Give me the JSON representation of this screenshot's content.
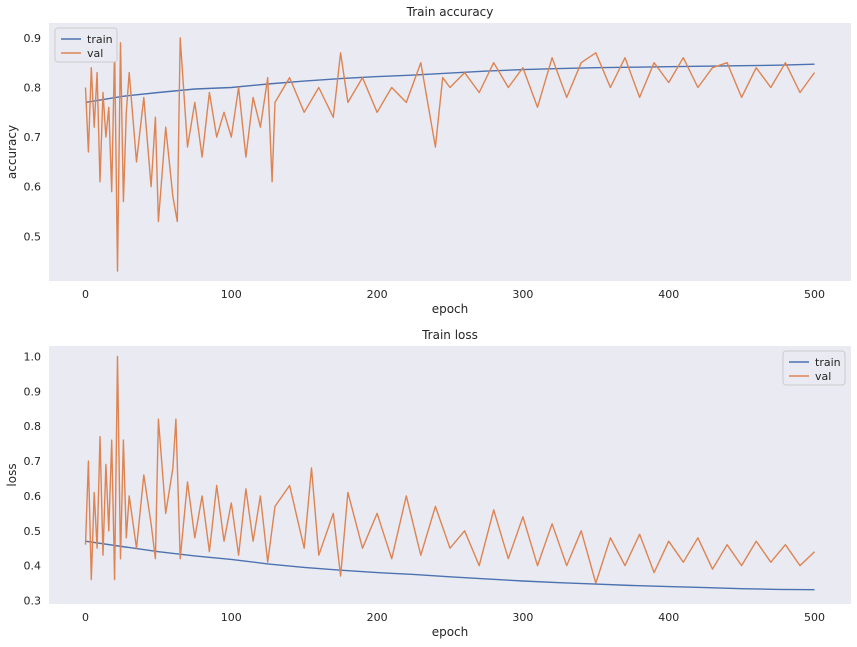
{
  "chart_data": [
    {
      "type": "line",
      "title": "Train accuracy",
      "xlabel": "epoch",
      "ylabel": "accuracy",
      "xlim": [
        -25,
        525
      ],
      "ylim": [
        0.41,
        0.93
      ],
      "xticks": [
        0,
        100,
        200,
        300,
        400,
        500
      ],
      "yticks": [
        0.5,
        0.6,
        0.7,
        0.8,
        0.9
      ],
      "tick_labels_x": [
        "0",
        "100",
        "200",
        "300",
        "400",
        "500"
      ],
      "tick_labels_y": [
        "0.5",
        "0.6",
        "0.7",
        "0.8",
        "0.9"
      ],
      "grid": false,
      "background": "#eaeaf2",
      "legend_position": "upper-left",
      "series": [
        {
          "name": "train",
          "color": "#4c72b0",
          "x": [
            0,
            25,
            50,
            75,
            100,
            125,
            150,
            175,
            200,
            225,
            250,
            275,
            300,
            325,
            350,
            375,
            400,
            425,
            450,
            475,
            500
          ],
          "y": [
            0.77,
            0.782,
            0.79,
            0.797,
            0.8,
            0.807,
            0.813,
            0.818,
            0.822,
            0.825,
            0.829,
            0.833,
            0.836,
            0.838,
            0.84,
            0.841,
            0.842,
            0.843,
            0.844,
            0.845,
            0.847
          ]
        },
        {
          "name": "val",
          "color": "#dd8452",
          "x": [
            0,
            2,
            4,
            6,
            8,
            10,
            12,
            14,
            16,
            18,
            20,
            22,
            24,
            26,
            28,
            30,
            35,
            40,
            45,
            48,
            50,
            55,
            60,
            63,
            65,
            70,
            75,
            80,
            85,
            90,
            95,
            100,
            105,
            110,
            115,
            120,
            125,
            128,
            130,
            140,
            150,
            160,
            170,
            175,
            180,
            190,
            200,
            210,
            220,
            230,
            240,
            245,
            250,
            260,
            270,
            280,
            290,
            300,
            310,
            320,
            330,
            340,
            350,
            360,
            370,
            380,
            390,
            400,
            410,
            420,
            430,
            440,
            450,
            460,
            470,
            480,
            490,
            500
          ],
          "y": [
            0.8,
            0.67,
            0.84,
            0.72,
            0.83,
            0.61,
            0.79,
            0.7,
            0.76,
            0.59,
            0.88,
            0.43,
            0.89,
            0.57,
            0.75,
            0.83,
            0.65,
            0.78,
            0.6,
            0.74,
            0.53,
            0.72,
            0.58,
            0.53,
            0.9,
            0.68,
            0.77,
            0.66,
            0.79,
            0.7,
            0.75,
            0.7,
            0.8,
            0.66,
            0.78,
            0.72,
            0.82,
            0.61,
            0.77,
            0.82,
            0.75,
            0.8,
            0.74,
            0.87,
            0.77,
            0.82,
            0.75,
            0.8,
            0.77,
            0.85,
            0.68,
            0.82,
            0.8,
            0.83,
            0.79,
            0.85,
            0.8,
            0.84,
            0.76,
            0.86,
            0.78,
            0.85,
            0.87,
            0.8,
            0.86,
            0.78,
            0.85,
            0.81,
            0.86,
            0.8,
            0.84,
            0.85,
            0.78,
            0.84,
            0.8,
            0.85,
            0.79,
            0.83
          ]
        }
      ]
    },
    {
      "type": "line",
      "title": "Train loss",
      "xlabel": "epoch",
      "ylabel": "loss",
      "xlim": [
        -25,
        525
      ],
      "ylim": [
        0.29,
        1.03
      ],
      "xticks": [
        0,
        100,
        200,
        300,
        400,
        500
      ],
      "yticks": [
        0.3,
        0.4,
        0.5,
        0.6,
        0.7,
        0.8,
        0.9,
        1.0
      ],
      "tick_labels_x": [
        "0",
        "100",
        "200",
        "300",
        "400",
        "500"
      ],
      "tick_labels_y": [
        "0.3",
        "0.4",
        "0.5",
        "0.6",
        "0.7",
        "0.8",
        "0.9",
        "1.0"
      ],
      "grid": false,
      "background": "#eaeaf2",
      "legend_position": "upper-right",
      "series": [
        {
          "name": "train",
          "color": "#4c72b0",
          "x": [
            0,
            25,
            50,
            75,
            100,
            125,
            150,
            175,
            200,
            225,
            250,
            275,
            300,
            325,
            350,
            375,
            400,
            425,
            450,
            475,
            500
          ],
          "y": [
            0.47,
            0.455,
            0.44,
            0.428,
            0.418,
            0.405,
            0.395,
            0.387,
            0.38,
            0.375,
            0.368,
            0.362,
            0.356,
            0.351,
            0.347,
            0.343,
            0.34,
            0.337,
            0.334,
            0.332,
            0.331
          ]
        },
        {
          "name": "val",
          "color": "#dd8452",
          "x": [
            0,
            2,
            4,
            6,
            8,
            10,
            12,
            14,
            16,
            18,
            20,
            22,
            24,
            26,
            28,
            30,
            35,
            40,
            45,
            48,
            50,
            55,
            60,
            62,
            65,
            70,
            75,
            80,
            85,
            90,
            95,
            100,
            105,
            110,
            115,
            120,
            125,
            130,
            140,
            150,
            155,
            160,
            170,
            175,
            180,
            190,
            200,
            210,
            220,
            230,
            240,
            250,
            260,
            270,
            280,
            290,
            300,
            310,
            320,
            330,
            340,
            350,
            360,
            370,
            380,
            390,
            400,
            410,
            420,
            430,
            440,
            450,
            460,
            470,
            480,
            490,
            500
          ],
          "y": [
            0.46,
            0.7,
            0.36,
            0.61,
            0.45,
            0.77,
            0.43,
            0.69,
            0.5,
            0.76,
            0.36,
            1.0,
            0.42,
            0.76,
            0.48,
            0.6,
            0.45,
            0.66,
            0.52,
            0.42,
            0.82,
            0.55,
            0.68,
            0.82,
            0.42,
            0.64,
            0.48,
            0.6,
            0.44,
            0.63,
            0.47,
            0.58,
            0.43,
            0.62,
            0.47,
            0.6,
            0.41,
            0.57,
            0.63,
            0.45,
            0.68,
            0.43,
            0.55,
            0.37,
            0.61,
            0.45,
            0.55,
            0.42,
            0.6,
            0.43,
            0.57,
            0.45,
            0.5,
            0.4,
            0.56,
            0.42,
            0.54,
            0.4,
            0.52,
            0.4,
            0.5,
            0.35,
            0.48,
            0.4,
            0.49,
            0.38,
            0.47,
            0.41,
            0.48,
            0.39,
            0.46,
            0.4,
            0.47,
            0.41,
            0.46,
            0.4,
            0.44
          ]
        }
      ]
    }
  ]
}
